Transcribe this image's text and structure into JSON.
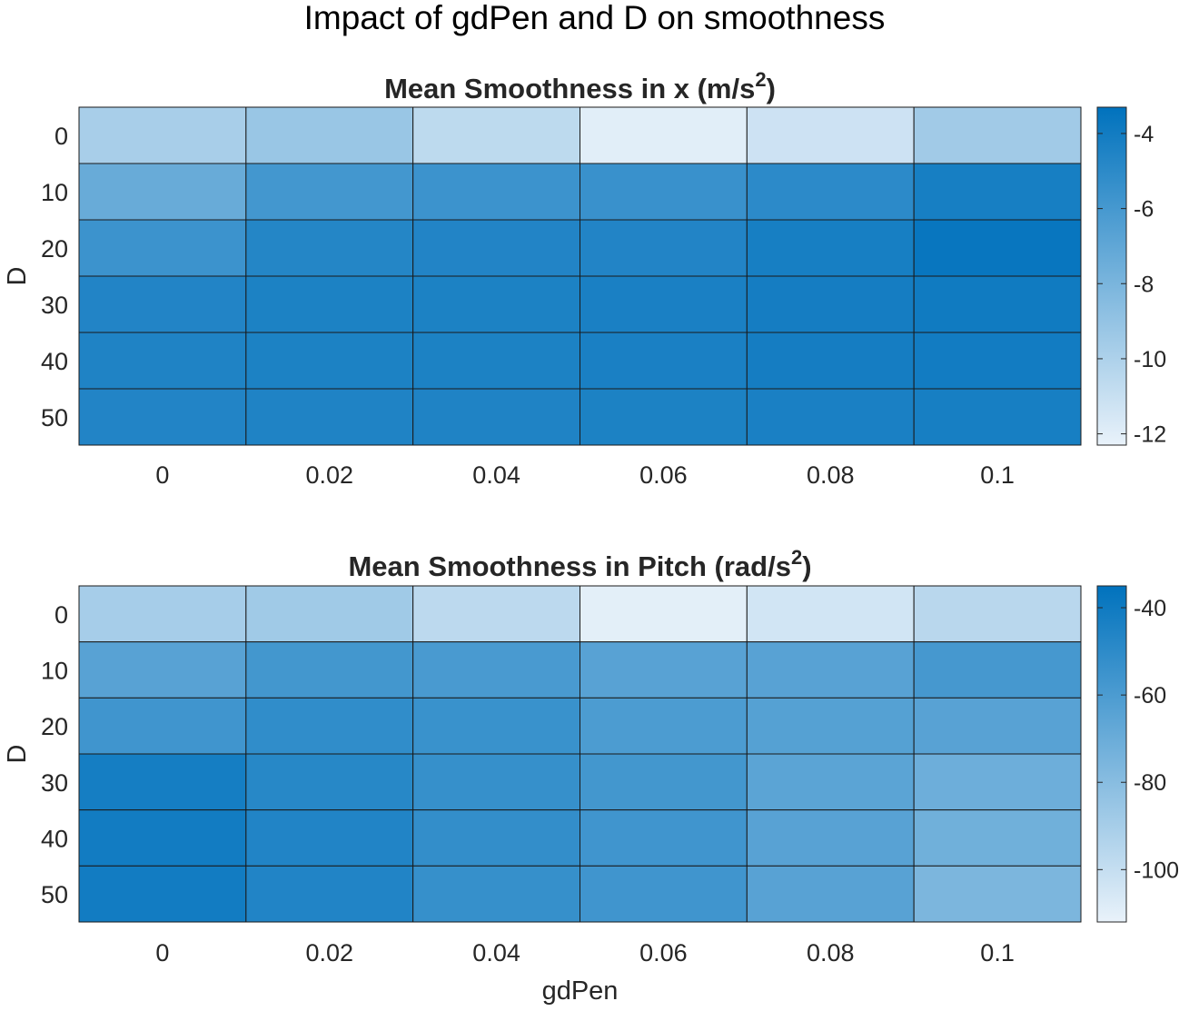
{
  "figure": {
    "suptitle": "Impact of gdPen and D on smoothness",
    "xlabel": "gdPen"
  },
  "chart_data": [
    {
      "type": "heatmap",
      "title": "Mean Smoothness in x (m/s",
      "title_superscript": "2",
      "title_suffix": ")",
      "xlabel": "",
      "ylabel": "D",
      "x": [
        "0",
        "0.02",
        "0.04",
        "0.06",
        "0.08",
        "0.1"
      ],
      "y": [
        "0",
        "10",
        "20",
        "30",
        "40",
        "50"
      ],
      "values": [
        [
          -9.8,
          -9.2,
          -10.6,
          -12.0,
          -11.2,
          -9.5
        ],
        [
          -7.3,
          -5.9,
          -5.6,
          -5.5,
          -5.0,
          -4.2
        ],
        [
          -5.6,
          -4.7,
          -4.6,
          -4.6,
          -4.2,
          -3.6
        ],
        [
          -4.6,
          -4.4,
          -4.4,
          -4.3,
          -4.1,
          -3.9
        ],
        [
          -4.5,
          -4.4,
          -4.4,
          -4.3,
          -4.1,
          -4.0
        ],
        [
          -4.6,
          -4.5,
          -4.5,
          -4.4,
          -4.3,
          -4.2
        ]
      ],
      "colorbar": {
        "range": [
          -12.3,
          -3.3
        ],
        "ticks": [
          "-4",
          "-6",
          "-8",
          "-10",
          "-12"
        ],
        "tick_values": [
          -4,
          -6,
          -8,
          -10,
          -12
        ]
      },
      "colormap": {
        "low": "#e9f2fa",
        "high": "#0072bd"
      },
      "grid": false,
      "legend": "none"
    },
    {
      "type": "heatmap",
      "title": "Mean Smoothness in Pitch (rad/s",
      "title_superscript": "2",
      "title_suffix": ")",
      "xlabel": "gdPen",
      "ylabel": "D",
      "x": [
        "0",
        "0.02",
        "0.04",
        "0.06",
        "0.08",
        "0.1"
      ],
      "y": [
        "0",
        "10",
        "20",
        "30",
        "40",
        "50"
      ],
      "values": [
        [
          -90,
          -88,
          -97,
          -110,
          -104,
          -96
        ],
        [
          -64,
          -57,
          -59,
          -64,
          -64,
          -58
        ],
        [
          -56,
          -51,
          -54,
          -60,
          -63,
          -64
        ],
        [
          -42,
          -48,
          -53,
          -57,
          -65,
          -71
        ],
        [
          -41,
          -46,
          -52,
          -56,
          -64,
          -72
        ],
        [
          -41,
          -46,
          -53,
          -56,
          -64,
          -76
        ]
      ],
      "colorbar": {
        "range": [
          -112,
          -35
        ],
        "ticks": [
          "-40",
          "-60",
          "-80",
          "-100"
        ],
        "tick_values": [
          -40,
          -60,
          -80,
          -100
        ]
      },
      "colormap": {
        "low": "#e9f2fa",
        "high": "#0072bd"
      },
      "grid": false,
      "legend": "none"
    }
  ]
}
